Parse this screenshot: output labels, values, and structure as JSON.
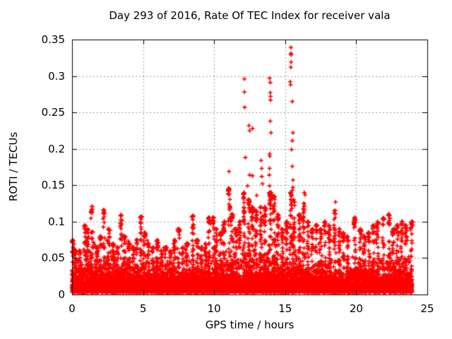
{
  "chart_data": {
    "type": "scatter",
    "title": "Day 293 of 2016, Rate Of TEC Index for receiver vala",
    "xlabel": "GPS time / hours",
    "ylabel": "ROTI / TECUs",
    "xlim": [
      0,
      25
    ],
    "ylim": [
      0,
      0.35
    ],
    "xticks": [
      {
        "v": 0,
        "label": "0"
      },
      {
        "v": 5,
        "label": "5"
      },
      {
        "v": 10,
        "label": "10"
      },
      {
        "v": 15,
        "label": "15"
      },
      {
        "v": 20,
        "label": "20"
      },
      {
        "v": 25,
        "label": "25"
      }
    ],
    "yticks": [
      {
        "v": 0,
        "label": "0"
      },
      {
        "v": 0.05,
        "label": "0.05"
      },
      {
        "v": 0.1,
        "label": "0.1"
      },
      {
        "v": 0.15,
        "label": "0.15"
      },
      {
        "v": 0.2,
        "label": "0.2"
      },
      {
        "v": 0.25,
        "label": "0.25"
      },
      {
        "v": 0.3,
        "label": "0.3"
      },
      {
        "v": 0.35,
        "label": "0.35"
      }
    ],
    "grid": {
      "on": true,
      "style": "dotted",
      "color": "#999999"
    },
    "marker": {
      "shape": "plus",
      "color": "#ff0000",
      "size": 7
    },
    "colors": {
      "axis": "#000000",
      "background": "#ffffff",
      "text": "#000000"
    },
    "legend": "none",
    "data_time_range": [
      0,
      23.93
    ],
    "baseline": {
      "seed": 293,
      "n": 9000,
      "min": 0.003,
      "cap_factor": 6,
      "half_hour_scale": [
        0.013,
        0.012,
        0.014,
        0.013,
        0.014,
        0.013,
        0.012,
        0.014,
        0.012,
        0.012,
        0.014,
        0.012,
        0.012,
        0.011,
        0.012,
        0.013,
        0.013,
        0.014,
        0.012,
        0.013,
        0.014,
        0.016,
        0.017,
        0.015,
        0.018,
        0.018,
        0.017,
        0.018,
        0.016,
        0.014,
        0.016,
        0.017,
        0.015,
        0.014,
        0.013,
        0.014,
        0.014,
        0.013,
        0.013,
        0.012,
        0.013,
        0.013,
        0.014,
        0.014,
        0.014,
        0.013,
        0.014,
        0.014
      ]
    },
    "spikes": [
      [
        0.05,
        0.075
      ],
      [
        0.2,
        0.062
      ],
      [
        0.55,
        0.06
      ],
      [
        0.9,
        0.095
      ],
      [
        1.1,
        0.09
      ],
      [
        1.4,
        0.121
      ],
      [
        1.75,
        0.065
      ],
      [
        2.0,
        0.08
      ],
      [
        2.25,
        0.116
      ],
      [
        2.6,
        0.09
      ],
      [
        2.9,
        0.07
      ],
      [
        3.2,
        0.065
      ],
      [
        3.45,
        0.109
      ],
      [
        3.7,
        0.08
      ],
      [
        4.0,
        0.07
      ],
      [
        4.3,
        0.065
      ],
      [
        4.55,
        0.075
      ],
      [
        4.85,
        0.107
      ],
      [
        5.1,
        0.085
      ],
      [
        5.35,
        0.07
      ],
      [
        5.7,
        0.065
      ],
      [
        6.0,
        0.075
      ],
      [
        6.3,
        0.06
      ],
      [
        6.6,
        0.065
      ],
      [
        6.9,
        0.06
      ],
      [
        7.2,
        0.075
      ],
      [
        7.5,
        0.09
      ],
      [
        7.8,
        0.065
      ],
      [
        8.1,
        0.07
      ],
      [
        8.5,
        0.108
      ],
      [
        8.8,
        0.075
      ],
      [
        9.1,
        0.065
      ],
      [
        9.4,
        0.07
      ],
      [
        9.65,
        0.106
      ],
      [
        9.95,
        0.106
      ],
      [
        10.15,
        0.09
      ],
      [
        10.45,
        0.085
      ],
      [
        10.7,
        0.1
      ],
      [
        11.05,
        0.145
      ],
      [
        11.25,
        0.11
      ],
      [
        11.55,
        0.09
      ],
      [
        11.8,
        0.1
      ],
      [
        12.1,
        0.14
      ],
      [
        12.45,
        0.13
      ],
      [
        12.7,
        0.12
      ],
      [
        12.95,
        0.115
      ],
      [
        13.3,
        0.12
      ],
      [
        13.55,
        0.12
      ],
      [
        13.95,
        0.14
      ],
      [
        14.2,
        0.135
      ],
      [
        14.5,
        0.11
      ],
      [
        14.8,
        0.09
      ],
      [
        15.1,
        0.1
      ],
      [
        15.4,
        0.14
      ],
      [
        15.6,
        0.13
      ],
      [
        16.0,
        0.11
      ],
      [
        16.3,
        0.125
      ],
      [
        16.6,
        0.1
      ],
      [
        16.9,
        0.09
      ],
      [
        17.2,
        0.095
      ],
      [
        17.5,
        0.09
      ],
      [
        17.8,
        0.1
      ],
      [
        18.1,
        0.095
      ],
      [
        18.5,
        0.115
      ],
      [
        18.8,
        0.09
      ],
      [
        19.1,
        0.085
      ],
      [
        19.4,
        0.08
      ],
      [
        19.9,
        0.106
      ],
      [
        20.3,
        0.09
      ],
      [
        20.6,
        0.08
      ],
      [
        20.9,
        0.085
      ],
      [
        21.2,
        0.095
      ],
      [
        21.5,
        0.1
      ],
      [
        21.9,
        0.105
      ],
      [
        22.3,
        0.11
      ],
      [
        22.6,
        0.09
      ],
      [
        22.9,
        0.095
      ],
      [
        23.2,
        0.1
      ],
      [
        23.5,
        0.095
      ],
      [
        23.9,
        0.1
      ]
    ],
    "outliers": [
      [
        11.0,
        0.138
      ],
      [
        11.05,
        0.169
      ],
      [
        11.05,
        0.146
      ],
      [
        12.13,
        0.296
      ],
      [
        12.13,
        0.278
      ],
      [
        12.15,
        0.257
      ],
      [
        12.2,
        0.188
      ],
      [
        12.35,
        0.149
      ],
      [
        12.45,
        0.232
      ],
      [
        12.5,
        0.225
      ],
      [
        12.5,
        0.164
      ],
      [
        12.7,
        0.228
      ],
      [
        12.7,
        0.163
      ],
      [
        13.0,
        0.136
      ],
      [
        13.3,
        0.184
      ],
      [
        13.35,
        0.173
      ],
      [
        13.35,
        0.162
      ],
      [
        13.4,
        0.152
      ],
      [
        13.9,
        0.297
      ],
      [
        13.95,
        0.291
      ],
      [
        13.95,
        0.277
      ],
      [
        13.97,
        0.272
      ],
      [
        13.97,
        0.267
      ],
      [
        13.95,
        0.238
      ],
      [
        14.0,
        0.222
      ],
      [
        13.9,
        0.193
      ],
      [
        13.92,
        0.19
      ],
      [
        13.9,
        0.173
      ],
      [
        13.88,
        0.164
      ],
      [
        13.9,
        0.149
      ],
      [
        15.4,
        0.339
      ],
      [
        15.4,
        0.331
      ],
      [
        15.42,
        0.329
      ],
      [
        15.42,
        0.319
      ],
      [
        15.4,
        0.312
      ],
      [
        15.35,
        0.292
      ],
      [
        15.38,
        0.288
      ],
      [
        15.5,
        0.265
      ],
      [
        15.55,
        0.222
      ],
      [
        15.5,
        0.211
      ],
      [
        15.45,
        0.199
      ],
      [
        15.5,
        0.176
      ],
      [
        15.55,
        0.157
      ],
      [
        15.55,
        0.147
      ],
      [
        15.5,
        0.143
      ],
      [
        16.35,
        0.14
      ],
      [
        16.4,
        0.137
      ],
      [
        18.55,
        0.127
      ]
    ]
  }
}
